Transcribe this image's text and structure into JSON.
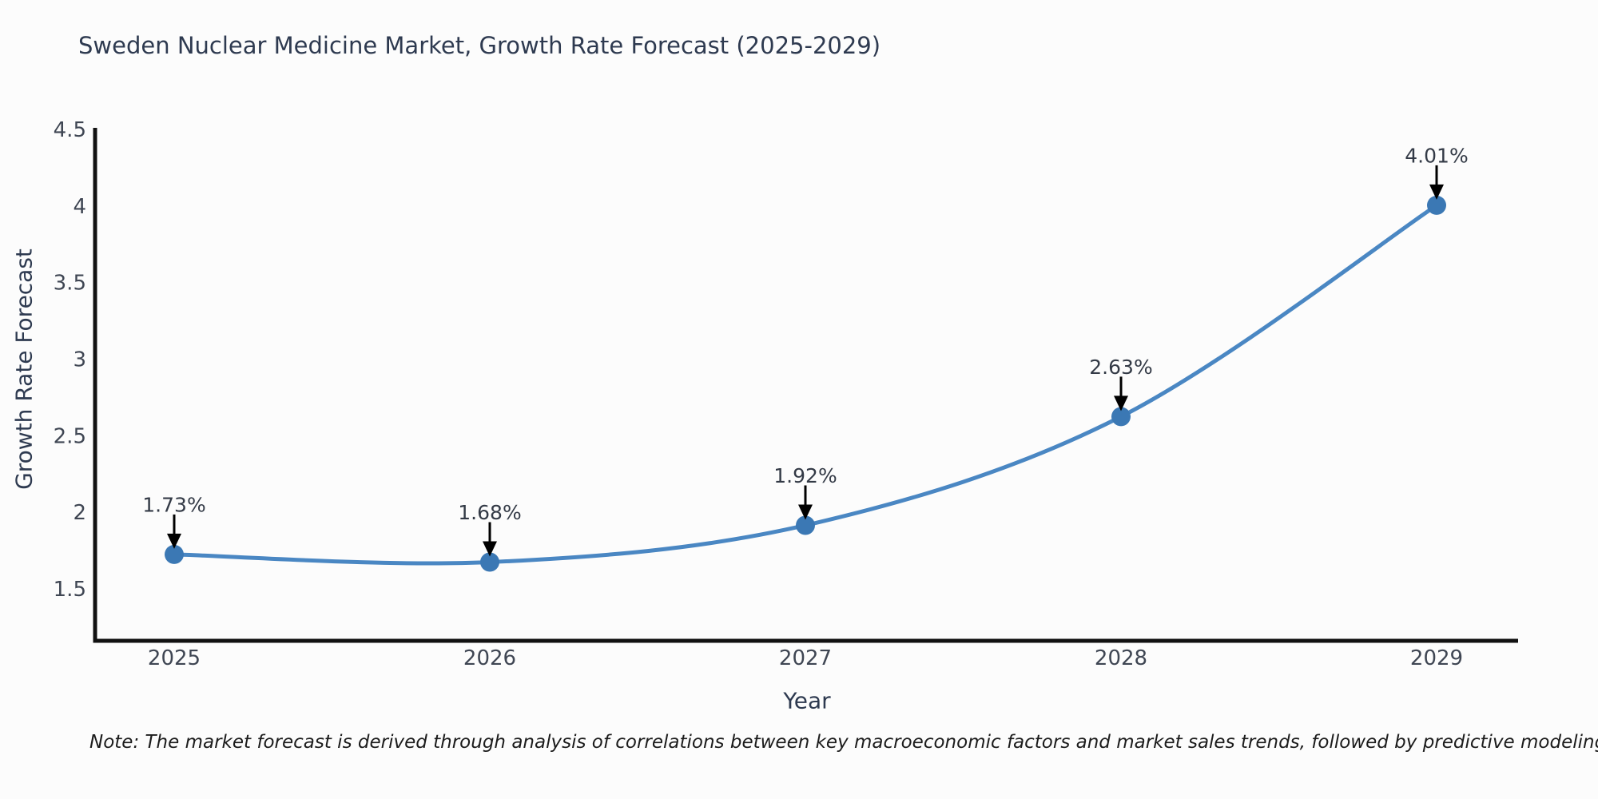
{
  "title": {
    "text": "Sweden Nuclear Medicine Market, Growth Rate Forecast (2025-2029)"
  },
  "x_axis": {
    "title": "Year",
    "ticks": [
      "2025",
      "2026",
      "2027",
      "2028",
      "2029"
    ]
  },
  "y_axis": {
    "title": "Growth Rate Forecast",
    "ticks": [
      "4.5",
      "4",
      "3.5",
      "3",
      "2.5",
      "2",
      "1.5"
    ]
  },
  "note": {
    "text": "Note: The market forecast is derived through analysis of correlations between key macroeconomic factors and market sales trends, followed by predictive modeling to project future sales"
  },
  "colors": {
    "background": "#fcfcfc",
    "line": "#4a87c3",
    "marker": "#3b78b4",
    "axis": "#111111",
    "tick_text": "#3f4653",
    "title_text": "#2e3a50",
    "annotation_text": "#333a46",
    "arrow": "#000000"
  },
  "chart_data": {
    "type": "line",
    "title": "Sweden Nuclear Medicine Market, Growth Rate Forecast (2025-2029)",
    "xlabel": "Year",
    "ylabel": "Growth Rate Forecast",
    "x": [
      2025,
      2026,
      2027,
      2028,
      2029
    ],
    "values": [
      1.73,
      1.68,
      1.92,
      2.63,
      4.01
    ],
    "point_labels": [
      "1.73%",
      "1.68%",
      "1.92%",
      "2.63%",
      "4.01%"
    ],
    "y_tick_values": [
      4.5,
      4.0,
      3.5,
      3.0,
      2.5,
      2.0,
      1.5
    ],
    "ylim": [
      1.17,
      4.52
    ],
    "grid": false,
    "legend": "none",
    "curve": "spline",
    "annotations": "black arrows pointing down to each marker"
  }
}
